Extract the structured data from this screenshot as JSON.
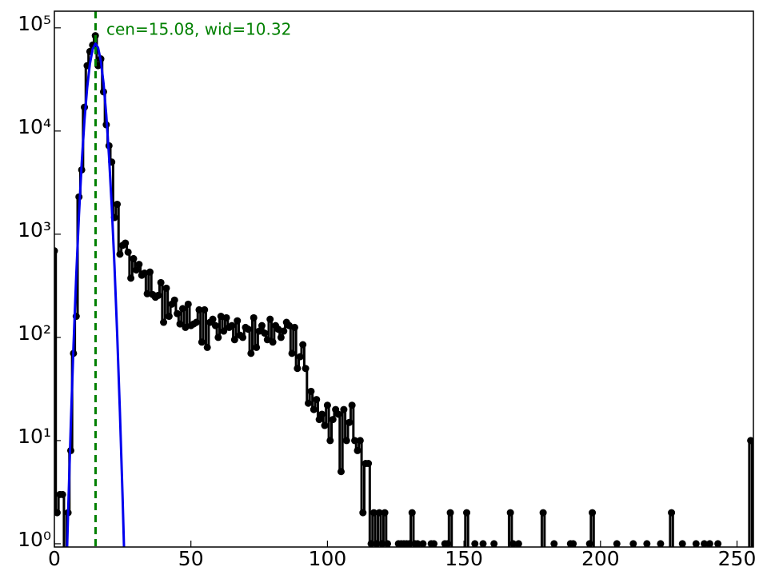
{
  "chart_data": {
    "type": "step-errorbar-log",
    "annotation": "cen=15.08, wid=10.32",
    "annotation_color": "#008000",
    "vline": 15.08,
    "vline_color": "#008000",
    "xlim": [
      0,
      256
    ],
    "ylim": [
      0.93,
      145000
    ],
    "log_y": true,
    "xticks": [
      0,
      50,
      100,
      150,
      200,
      250
    ],
    "yticks": [
      {
        "value": 1,
        "label": "10⁰"
      },
      {
        "value": 10,
        "label": "10¹"
      },
      {
        "value": 100,
        "label": "10²"
      },
      {
        "value": 1000,
        "label": "10³"
      },
      {
        "value": 10000,
        "label": "10⁴"
      },
      {
        "value": 100000,
        "label": "10⁵"
      }
    ],
    "series": [
      {
        "color": "#000000",
        "x": [
          0,
          1,
          2,
          3,
          5,
          6,
          7,
          8,
          9,
          10,
          11,
          12,
          13,
          14,
          15,
          16,
          17,
          18,
          19,
          20,
          21,
          22,
          23,
          24,
          25,
          26,
          27,
          28,
          29,
          30,
          31,
          32,
          33,
          34,
          35,
          36,
          37,
          38,
          39,
          40,
          41,
          42,
          43,
          44,
          45,
          46,
          47,
          48,
          49,
          50,
          51,
          52,
          53,
          54,
          55,
          56,
          57,
          58,
          59,
          60,
          61,
          62,
          63,
          64,
          65,
          66,
          67,
          68,
          69,
          70,
          71,
          72,
          73,
          74,
          75,
          76,
          77,
          78,
          79,
          80,
          81,
          82,
          83,
          84,
          85,
          86,
          87,
          88,
          89,
          90,
          91,
          92,
          93,
          94,
          95,
          96,
          97,
          98,
          99,
          100,
          101,
          102,
          103,
          104,
          105,
          106,
          107,
          108,
          109,
          110,
          111,
          112,
          113,
          114,
          115,
          116,
          117,
          118,
          119,
          120,
          121,
          122,
          126,
          127,
          128,
          129,
          130,
          131,
          132,
          133,
          135,
          138,
          139,
          143,
          144,
          145,
          151,
          154,
          157,
          161,
          167,
          168,
          170,
          179,
          183,
          189,
          190,
          196,
          197,
          206,
          212,
          217,
          222,
          226,
          230,
          235,
          238,
          240,
          243,
          255
        ],
        "values": [
          690,
          2,
          3,
          3,
          2,
          8,
          70,
          160,
          2300,
          4200,
          17000,
          43000,
          59000,
          68000,
          84000,
          43000,
          50000,
          24000,
          11500,
          7200,
          5000,
          1450,
          1950,
          640,
          780,
          820,
          670,
          375,
          580,
          450,
          510,
          400,
          420,
          265,
          430,
          260,
          245,
          255,
          340,
          140,
          300,
          160,
          210,
          230,
          170,
          135,
          190,
          125,
          210,
          130,
          135,
          140,
          185,
          90,
          185,
          80,
          140,
          150,
          130,
          100,
          160,
          115,
          155,
          125,
          130,
          95,
          145,
          105,
          100,
          125,
          120,
          70,
          155,
          80,
          115,
          130,
          110,
          95,
          150,
          90,
          130,
          120,
          100,
          115,
          140,
          130,
          70,
          125,
          50,
          65,
          85,
          50,
          23,
          30,
          20,
          25,
          16,
          18,
          14,
          22,
          10,
          16,
          20,
          18,
          5,
          20,
          10,
          15,
          22,
          10,
          8,
          10,
          2,
          6,
          6,
          1,
          2,
          1,
          2,
          1,
          2,
          1,
          1,
          1,
          1,
          1,
          1,
          2,
          1,
          1,
          1,
          1,
          1,
          1,
          1,
          2,
          2,
          1,
          1,
          1,
          2,
          1,
          1,
          2,
          1,
          1,
          1,
          1,
          2,
          1,
          1,
          1,
          1,
          2,
          1,
          1,
          1,
          1,
          1,
          10
        ]
      },
      {
        "color": "#0000ee",
        "x": [
          4,
          5,
          6,
          7,
          8,
          9,
          10,
          11,
          12,
          13,
          14,
          15,
          15.08,
          16,
          17,
          18,
          19,
          20,
          21,
          22,
          23,
          24,
          25,
          26
        ],
        "values": [
          0.22,
          1.9,
          14,
          83,
          395,
          1535,
          4860,
          12530,
          26250,
          44780,
          62070,
          69990,
          70000,
          64140,
          47820,
          29000,
          14300,
          5740,
          1875,
          497,
          107,
          18.8,
          2.7,
          0.31
        ]
      }
    ]
  }
}
